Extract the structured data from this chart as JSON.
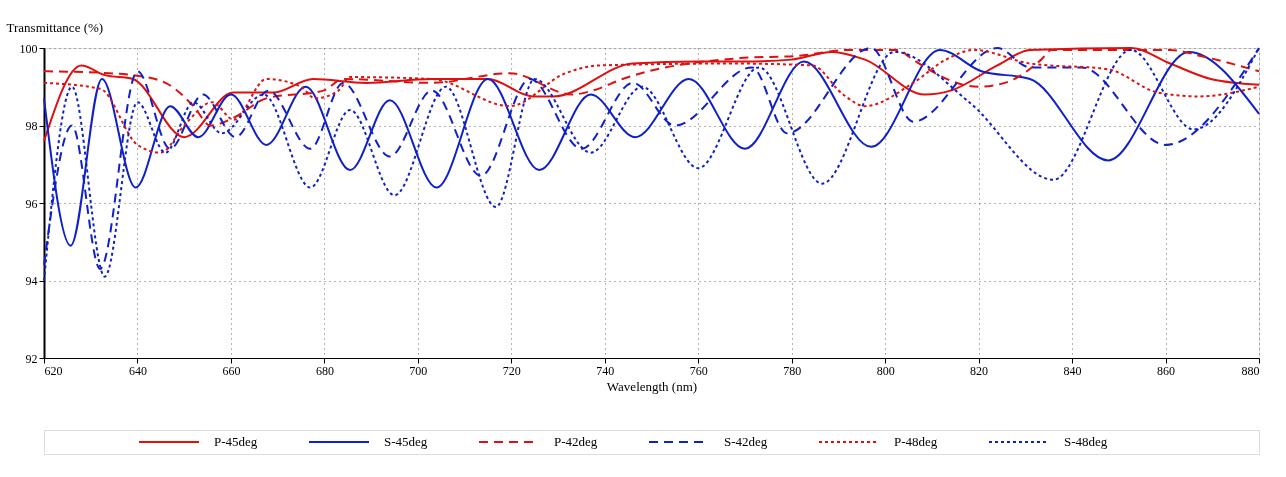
{
  "chart_data": {
    "type": "line",
    "xlabel": "Wavelength (nm)",
    "ylabel": "Transmittance (%)",
    "xlim": [
      620,
      880
    ],
    "ylim": [
      92,
      100
    ],
    "xticks": [
      620,
      640,
      660,
      680,
      700,
      720,
      740,
      760,
      780,
      800,
      820,
      840,
      860,
      880
    ],
    "yticks": [
      92,
      94,
      96,
      98,
      100
    ],
    "grid": true,
    "legend": "bottom",
    "series": [
      {
        "name": "P-45deg",
        "color": "#e01010",
        "line_style": "solid",
        "x": [
          620,
          628,
          633,
          639,
          650,
          660.5,
          669,
          677.6,
          689,
          703,
          710,
          715,
          724.6,
          729,
          746,
          760,
          770,
          780,
          788.6,
          795.7,
          808.5,
          814,
          824,
          831,
          852.7,
          861,
          869.7,
          880
        ],
        "values": [
          97.6,
          99.55,
          99.3,
          99.2,
          97.7,
          98.85,
          98.85,
          99.2,
          99.1,
          99.2,
          99.2,
          99.2,
          98.75,
          98.75,
          99.6,
          99.65,
          99.65,
          99.7,
          99.9,
          99.7,
          98.8,
          98.9,
          99.55,
          99.95,
          100,
          99.6,
          99.2,
          99.05
        ]
      },
      {
        "name": "S-45deg",
        "color": "#1020c8",
        "line_style": "solid",
        "x": [
          620,
          625.7,
          632.4,
          639.6,
          647,
          653,
          660,
          667.6,
          676,
          685.5,
          694,
          704,
          715,
          726,
          737,
          746.5,
          758,
          770,
          782.6,
          797,
          811.7,
          820.6,
          831,
          847.7,
          865,
          880
        ],
        "values": [
          98.7,
          94.9,
          99.2,
          96.4,
          98.5,
          97.7,
          98.8,
          97.5,
          99.0,
          96.85,
          98.65,
          96.4,
          99.2,
          96.85,
          98.8,
          97.7,
          99.2,
          97.4,
          99.65,
          97.45,
          99.95,
          99.4,
          99.2,
          97.1,
          99.9,
          98.3
        ]
      },
      {
        "name": "P-42deg",
        "color": "#e01010",
        "line_style": "dashed",
        "x": [
          620,
          634,
          639,
          646,
          652,
          655.6,
          660.6,
          667.6,
          679.8,
          684,
          703,
          719.7,
          733,
          737.4,
          743.8,
          769,
          781.6,
          792,
          803,
          805,
          820,
          825.6,
          833.4,
          835.6,
          861,
          868,
          880
        ],
        "values": [
          99.4,
          99.35,
          99.3,
          99.1,
          98.5,
          98.0,
          98.2,
          98.7,
          98.9,
          99.2,
          99.1,
          99.35,
          98.8,
          98.9,
          99.2,
          99.74,
          99.8,
          99.95,
          99.95,
          99.78,
          99.0,
          99.1,
          99.7,
          99.95,
          99.95,
          99.78,
          99.4
        ]
      },
      {
        "name": "S-42deg",
        "color": "#1020c8",
        "line_style": "dashed",
        "x": [
          620,
          626,
          632,
          640,
          647,
          654,
          661,
          668,
          677,
          684,
          694,
          703,
          713.5,
          724,
          735,
          746,
          755,
          771.5,
          779,
          797,
          806,
          824,
          831,
          842,
          860,
          880
        ],
        "values": [
          94.4,
          98.0,
          94.3,
          99.4,
          97.4,
          98.8,
          97.7,
          98.9,
          97.4,
          99.1,
          97.2,
          98.9,
          96.7,
          99.2,
          97.4,
          99.1,
          98.0,
          99.5,
          97.8,
          100,
          98.1,
          100,
          99.5,
          99.5,
          97.5,
          100
        ]
      },
      {
        "name": "P-48deg",
        "color": "#e01010",
        "line_style": "dotted",
        "x": [
          620,
          632,
          640,
          645,
          650,
          656,
          660.6,
          667.6,
          675,
          678,
          683,
          685.5,
          703,
          719.7,
          731.6,
          738.9,
          767,
          784.4,
          791,
          795.7,
          806,
          813,
          819,
          831,
          847.7,
          858.4,
          867,
          880
        ],
        "values": [
          99.1,
          98.95,
          97.5,
          97.3,
          98.0,
          98.6,
          98.15,
          99.2,
          99.0,
          98.7,
          98.9,
          99.25,
          99.2,
          98.5,
          99.35,
          99.55,
          99.6,
          99.55,
          98.8,
          98.5,
          99.1,
          99.7,
          99.95,
          99.6,
          99.45,
          98.85,
          98.75,
          99.0
        ]
      },
      {
        "name": "S-48deg",
        "color": "#1020c8",
        "line_style": "dotted",
        "x": [
          620,
          626,
          633,
          640,
          646,
          652,
          658,
          667,
          677,
          685.5,
          695,
          706,
          716.7,
          725,
          737,
          748,
          760,
          773,
          786.5,
          802,
          818,
          836,
          852.6,
          866,
          880
        ],
        "values": [
          94.0,
          99.0,
          94.1,
          98.6,
          97.3,
          98.6,
          97.8,
          98.8,
          96.4,
          98.4,
          96.2,
          99.0,
          95.9,
          99.2,
          97.3,
          99.0,
          96.9,
          99.5,
          96.5,
          99.9,
          98.6,
          96.6,
          99.95,
          97.9,
          100
        ]
      }
    ]
  }
}
